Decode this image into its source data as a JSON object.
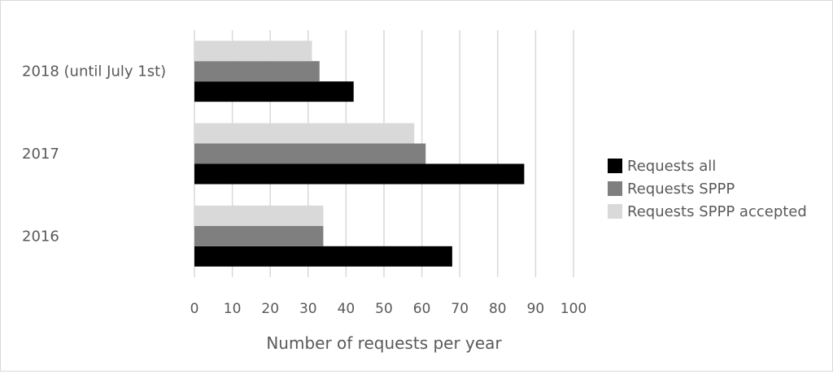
{
  "chart_data": {
    "type": "bar",
    "orientation": "horizontal",
    "title": "",
    "categories": [
      "2016",
      "2017",
      "2018 (until July 1st)"
    ],
    "series": [
      {
        "name": "Requests all",
        "color": "#000000",
        "values": [
          68,
          87,
          42
        ]
      },
      {
        "name": "Requests SPPP",
        "color": "#7f7f7f",
        "values": [
          34,
          61,
          33
        ]
      },
      {
        "name": "Requests SPPP accepted",
        "color": "#d9d9d9",
        "values": [
          34,
          58,
          31
        ]
      }
    ],
    "xlabel": "Number of requests per year",
    "ylabel": "",
    "xlim": [
      0,
      100
    ],
    "xticks": [
      0,
      10,
      20,
      30,
      40,
      50,
      60,
      70,
      80,
      90,
      100
    ],
    "grid": "vertical",
    "legend": "right",
    "gridline_color": "#d9d9d9"
  }
}
